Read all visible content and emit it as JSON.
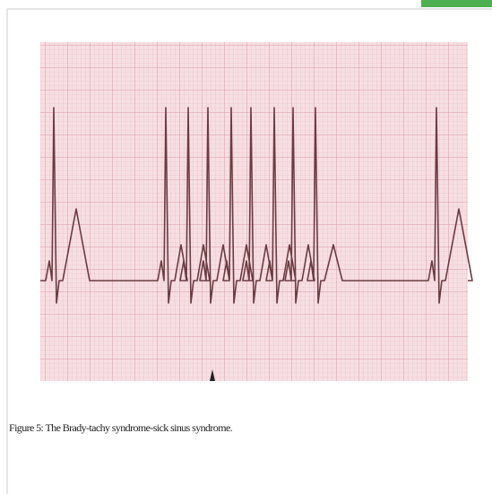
{
  "figure": {
    "caption": "Figure 5: The Brady-tachy syndrome-sick sinus syndrome."
  }
}
